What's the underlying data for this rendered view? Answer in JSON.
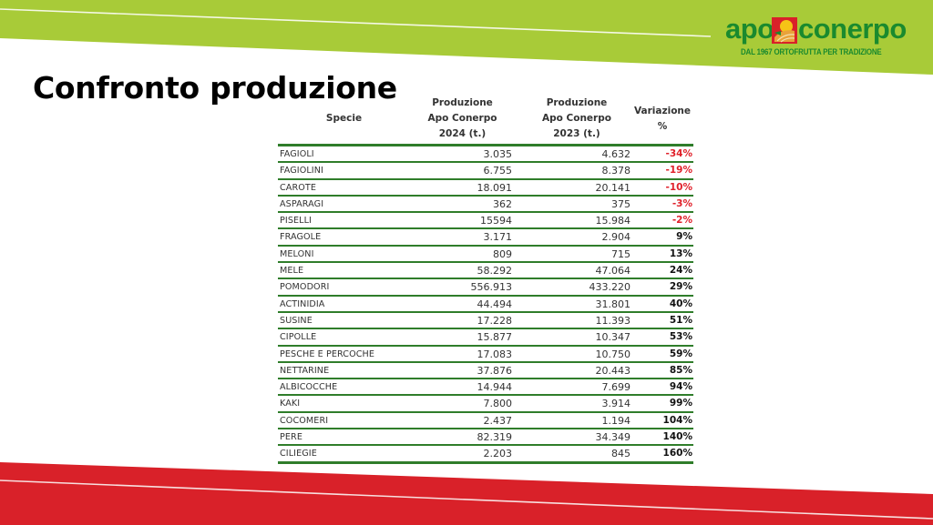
{
  "slide": {
    "title": "Confronto produzione",
    "colors": {
      "green_band": "#a8cb38",
      "red_band": "#d92129",
      "table_rule": "#2f7d2a",
      "negative": "#e0202a",
      "logo_green": "#1a8a2e"
    }
  },
  "logo": {
    "word_left": "apo",
    "word_right": "conerpo",
    "tagline": "DAL 1967 ORTOFRUTTA PER TRADIZIONE",
    "icon": "sun-over-field-icon"
  },
  "table": {
    "headers": {
      "species": "Specie",
      "prod_2024": [
        "Produzione",
        "Apo Conerpo",
        "2024 (t.)"
      ],
      "prod_2023": [
        "Produzione",
        "Apo Conerpo",
        "2023 (t.)"
      ],
      "variation": [
        "Variazione",
        "%"
      ]
    },
    "rows": [
      {
        "specie": "FAGIOLI",
        "y2024": "3.035",
        "y2023": "4.632",
        "var": "-34%",
        "neg": true
      },
      {
        "specie": "FAGIOLINI",
        "y2024": "6.755",
        "y2023": "8.378",
        "var": "-19%",
        "neg": true
      },
      {
        "specie": "CAROTE",
        "y2024": "18.091",
        "y2023": "20.141",
        "var": "-10%",
        "neg": true
      },
      {
        "specie": "ASPARAGI",
        "y2024": "362",
        "y2023": "375",
        "var": "-3%",
        "neg": true
      },
      {
        "specie": "PISELLI",
        "y2024": "15594",
        "y2023": "15.984",
        "var": "-2%",
        "neg": true
      },
      {
        "specie": "FRAGOLE",
        "y2024": "3.171",
        "y2023": "2.904",
        "var": "9%",
        "neg": false
      },
      {
        "specie": "MELONI",
        "y2024": "809",
        "y2023": "715",
        "var": "13%",
        "neg": false
      },
      {
        "specie": "MELE",
        "y2024": "58.292",
        "y2023": "47.064",
        "var": "24%",
        "neg": false
      },
      {
        "specie": "POMODORI",
        "y2024": "556.913",
        "y2023": "433.220",
        "var": "29%",
        "neg": false
      },
      {
        "specie": "ACTINIDIA",
        "y2024": "44.494",
        "y2023": "31.801",
        "var": "40%",
        "neg": false
      },
      {
        "specie": "SUSINE",
        "y2024": "17.228",
        "y2023": "11.393",
        "var": "51%",
        "neg": false
      },
      {
        "specie": "CIPOLLE",
        "y2024": "15.877",
        "y2023": "10.347",
        "var": "53%",
        "neg": false
      },
      {
        "specie": "PESCHE E PERCOCHE",
        "y2024": "17.083",
        "y2023": "10.750",
        "var": "59%",
        "neg": false
      },
      {
        "specie": "NETTARINE",
        "y2024": "37.876",
        "y2023": "20.443",
        "var": "85%",
        "neg": false
      },
      {
        "specie": "ALBICOCCHE",
        "y2024": "14.944",
        "y2023": "7.699",
        "var": "94%",
        "neg": false
      },
      {
        "specie": "KAKI",
        "y2024": "7.800",
        "y2023": "3.914",
        "var": "99%",
        "neg": false
      },
      {
        "specie": "COCOMERI",
        "y2024": "2.437",
        "y2023": "1.194",
        "var": "104%",
        "neg": false
      },
      {
        "specie": "PERE",
        "y2024": "82.319",
        "y2023": "34.349",
        "var": "140%",
        "neg": false
      },
      {
        "specie": "CILIEGIE",
        "y2024": "2.203",
        "y2023": "845",
        "var": "160%",
        "neg": false
      }
    ]
  }
}
